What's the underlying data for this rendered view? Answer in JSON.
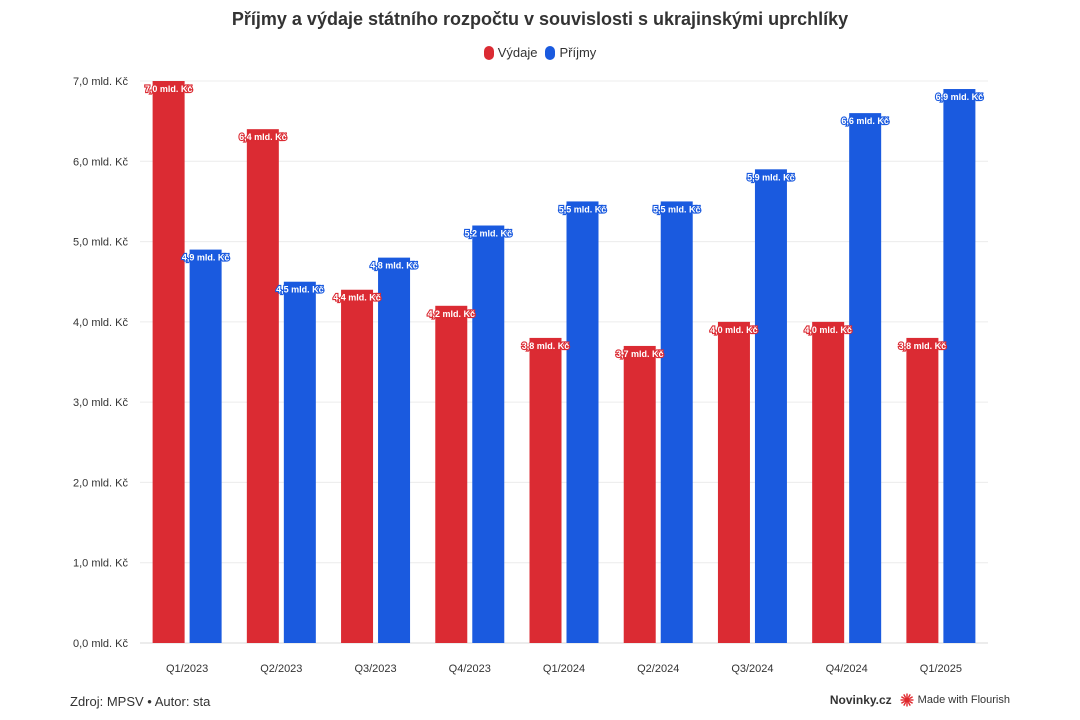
{
  "colors": {
    "vydaje": "#db2b33",
    "prijmy": "#1a5adf",
    "grid": "#ececec",
    "text": "#333333",
    "flourish_icon": "#e0282d"
  },
  "legend": [
    {
      "label": "Výdaje",
      "color": "#db2b33"
    },
    {
      "label": "Příjmy",
      "color": "#1a5adf"
    }
  ],
  "footer": {
    "source": "Zdroj: MPSV • Autor: sta",
    "brand": "Novinky.cz",
    "flourish": "Made with Flourish"
  },
  "chart_data": {
    "type": "bar",
    "title": "Příjmy a výdaje státního rozpočtu v souvislosti s ukrajinskými uprchlíky",
    "xlabel": "",
    "ylabel": "",
    "ylim": [
      0,
      7
    ],
    "grid": true,
    "legend_position": "top-center",
    "categories": [
      "Q1/2023",
      "Q2/2023",
      "Q3/2023",
      "Q4/2023",
      "Q1/2024",
      "Q2/2024",
      "Q3/2024",
      "Q4/2024",
      "Q1/2025"
    ],
    "y_ticks": [
      {
        "value": 0,
        "label": "0,0 mld. Kč"
      },
      {
        "value": 1,
        "label": "1,0 mld. Kč"
      },
      {
        "value": 2,
        "label": "2,0 mld. Kč"
      },
      {
        "value": 3,
        "label": "3,0 mld. Kč"
      },
      {
        "value": 4,
        "label": "4,0 mld. Kč"
      },
      {
        "value": 5,
        "label": "5,0 mld. Kč"
      },
      {
        "value": 6,
        "label": "6,0 mld. Kč"
      },
      {
        "value": 7,
        "label": "7,0 mld. Kč"
      }
    ],
    "series": [
      {
        "name": "Výdaje",
        "color": "#db2b33",
        "values": [
          7.0,
          6.4,
          4.4,
          4.2,
          3.8,
          3.7,
          4.0,
          4.0,
          3.8
        ],
        "labels": [
          "7,0 mld. Kč",
          "6,4 mld. Kč",
          "4,4 mld. Kč",
          "4,2 mld. Kč",
          "3,8 mld. Kč",
          "3,7 mld. Kč",
          "4,0 mld. Kč",
          "4,0 mld. Kč",
          "3,8 mld. Kč"
        ]
      },
      {
        "name": "Příjmy",
        "color": "#1a5adf",
        "values": [
          4.9,
          4.5,
          4.8,
          5.2,
          5.5,
          5.5,
          5.9,
          6.6,
          6.9
        ],
        "labels": [
          "4,9 mld. Kč",
          "4,5 mld. Kč",
          "4,8 mld. Kč",
          "5,2 mld. Kč",
          "5,5 mld. Kč",
          "5,5 mld. Kč",
          "5,9 mld. Kč",
          "6,6 mld. Kč",
          "6,9 mld. Kč"
        ]
      }
    ]
  }
}
